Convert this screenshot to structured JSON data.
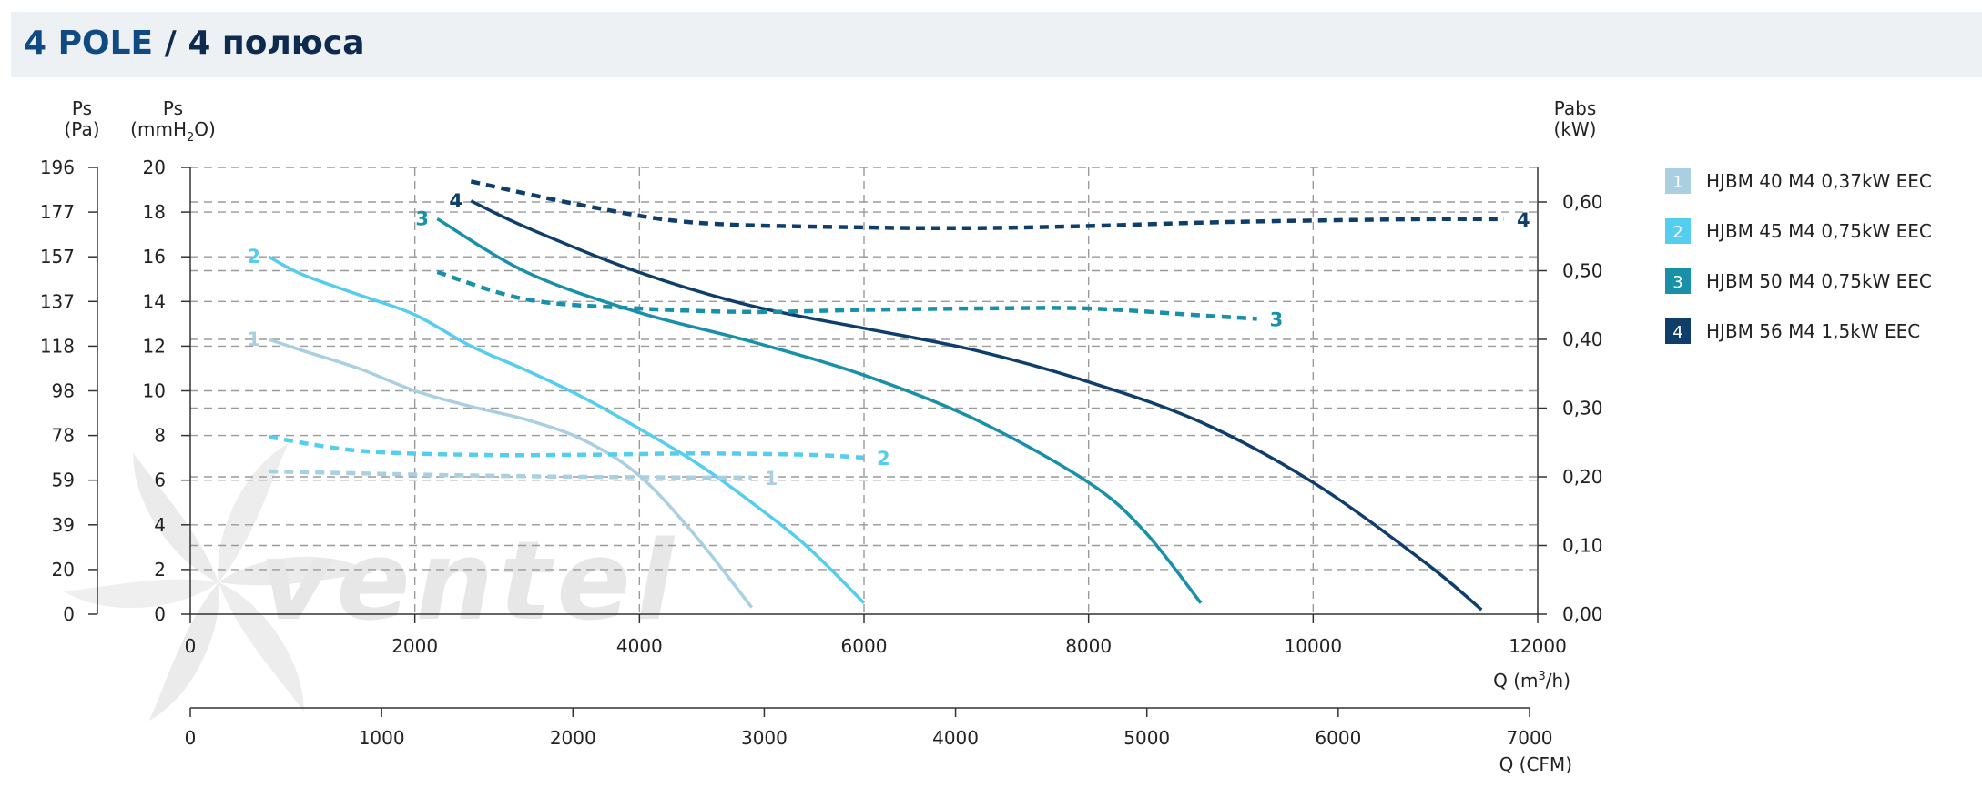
{
  "header": {
    "title_pole": "4 POLE",
    "title_rest": "/ 4 полюса"
  },
  "axes": {
    "left_pa": {
      "label_line1": "Ps",
      "label_line2": "(Pa)",
      "ticks": [
        "0",
        "20",
        "39",
        "59",
        "78",
        "98",
        "118",
        "137",
        "157",
        "177",
        "196"
      ]
    },
    "left_mm": {
      "label_line1": "Ps",
      "label_line2_a": "(mmH",
      "label_line2_sub": "2",
      "label_line2_b": "O)",
      "ticks": [
        "0",
        "2",
        "4",
        "6",
        "8",
        "10",
        "12",
        "14",
        "16",
        "18",
        "20"
      ]
    },
    "right_pabs": {
      "label_line1": "Pabs",
      "label_line2": "(kW)",
      "ticks": [
        "0,00",
        "0,10",
        "0,20",
        "0,30",
        "0,40",
        "0,50",
        "0,60"
      ]
    },
    "x_m3h": {
      "label_a": "Q (m",
      "label_sup": "3",
      "label_b": "/h)",
      "ticks": [
        "0",
        "2000",
        "4000",
        "6000",
        "8000",
        "10000",
        "12000"
      ]
    },
    "x_cfm": {
      "label": "Q (CFM)",
      "ticks": [
        "0",
        "1000",
        "2000",
        "3000",
        "4000",
        "5000",
        "6000",
        "7000"
      ]
    }
  },
  "legend": [
    {
      "num": "1",
      "label": "HJBM 40 M4 0,37kW EEC",
      "color": "#a9cfe0"
    },
    {
      "num": "2",
      "label": "HJBM 45 M4 0,75kW EEC",
      "color": "#55cdef"
    },
    {
      "num": "3",
      "label": "HJBM 50 M4 0,75kW EEC",
      "color": "#1790a8"
    },
    {
      "num": "4",
      "label": "HJBM 56 M4 1,5kW EEC",
      "color": "#0f3e6b"
    }
  ],
  "watermark": "ventel",
  "chart_data": {
    "type": "line",
    "x_unit": "m3/h",
    "xlim": [
      0,
      12000
    ],
    "ylim_mmH2O": [
      0,
      20
    ],
    "ylim_kW": [
      0,
      0.65
    ],
    "grid": true,
    "legend_placement": "right",
    "series": [
      {
        "name": "HJBM 40 M4 0,37kW EEC",
        "label": "1",
        "color": "#a9cfe0",
        "kind": "pressure",
        "axis": "mmH2O",
        "x": [
          700,
          1000,
          1500,
          2000,
          2500,
          3000,
          3500,
          4000,
          4500,
          5000
        ],
        "y": [
          12.3,
          11.8,
          11.0,
          10.0,
          9.3,
          8.7,
          7.8,
          6.2,
          3.5,
          0.3
        ]
      },
      {
        "name": "HJBM 45 M4 0,75kW EEC",
        "label": "2",
        "color": "#55cdef",
        "kind": "pressure",
        "axis": "mmH2O",
        "x": [
          700,
          1000,
          1500,
          2000,
          2500,
          3000,
          3500,
          4000,
          4500,
          5000,
          5500,
          6000
        ],
        "y": [
          16.0,
          15.2,
          14.3,
          13.4,
          12.0,
          10.9,
          9.7,
          8.3,
          6.8,
          5.0,
          3.0,
          0.5
        ]
      },
      {
        "name": "HJBM 50 M4 0,75kW EEC",
        "label": "3",
        "color": "#1790a8",
        "kind": "pressure",
        "axis": "mmH2O",
        "x": [
          2200,
          3000,
          4000,
          5000,
          6000,
          7000,
          8000,
          8500,
          9000
        ],
        "y": [
          17.7,
          15.3,
          13.5,
          12.2,
          10.7,
          8.7,
          5.9,
          3.7,
          0.5
        ]
      },
      {
        "name": "HJBM 56 M4 1,5kW EEC",
        "label": "4",
        "color": "#0f3e6b",
        "kind": "pressure",
        "axis": "mmH2O",
        "x": [
          2500,
          3000,
          4000,
          5000,
          6000,
          7000,
          8000,
          9000,
          10000,
          11000,
          11500
        ],
        "y": [
          18.5,
          17.3,
          15.3,
          13.8,
          12.8,
          11.8,
          10.4,
          8.6,
          5.9,
          2.3,
          0.2
        ]
      },
      {
        "name": "HJBM 40 M4 0,37kW EEC",
        "label": "1",
        "color": "#a9cfe0",
        "kind": "power",
        "axis": "kW",
        "x": [
          700,
          1500,
          2500,
          3500,
          4500,
          5000
        ],
        "y": [
          0.208,
          0.205,
          0.202,
          0.2,
          0.199,
          0.199
        ]
      },
      {
        "name": "HJBM 45 M4 0,75kW EEC",
        "label": "2",
        "color": "#55cdef",
        "kind": "power",
        "axis": "kW",
        "x": [
          700,
          1500,
          2500,
          3500,
          4500,
          5500,
          6000
        ],
        "y": [
          0.258,
          0.238,
          0.232,
          0.232,
          0.234,
          0.232,
          0.228
        ]
      },
      {
        "name": "HJBM 50 M4 0,75kW EEC",
        "label": "3",
        "color": "#1790a8",
        "kind": "power",
        "axis": "kW",
        "x": [
          2200,
          3000,
          4000,
          5000,
          6000,
          7000,
          8000,
          9000,
          9500
        ],
        "y": [
          0.498,
          0.458,
          0.445,
          0.44,
          0.443,
          0.445,
          0.445,
          0.435,
          0.43
        ]
      },
      {
        "name": "HJBM 56 M4 1,5kW EEC",
        "label": "4",
        "color": "#0f3e6b",
        "kind": "power",
        "axis": "kW",
        "x": [
          2500,
          3500,
          4500,
          6000,
          7000,
          8000,
          9000,
          10000,
          11000,
          11700
        ],
        "y": [
          0.63,
          0.595,
          0.57,
          0.563,
          0.562,
          0.565,
          0.57,
          0.573,
          0.575,
          0.575
        ]
      }
    ]
  }
}
